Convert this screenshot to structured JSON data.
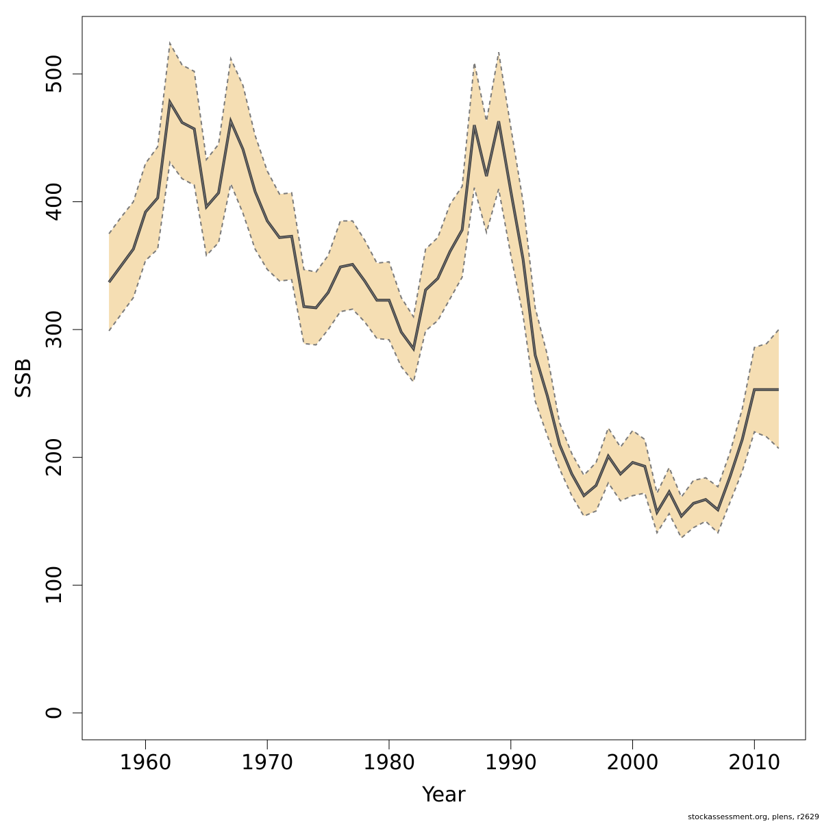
{
  "chart_data": {
    "type": "line",
    "xlabel": "Year",
    "ylabel": "SSB",
    "xlim": [
      1954.8,
      2014.2
    ],
    "ylim": [
      -21,
      545
    ],
    "x_ticks": [
      1960,
      1970,
      1980,
      1990,
      2000,
      2010
    ],
    "y_ticks": [
      0,
      100,
      200,
      300,
      400,
      500
    ],
    "x": [
      1957,
      1958,
      1959,
      1960,
      1961,
      1962,
      1963,
      1964,
      1965,
      1966,
      1967,
      1968,
      1969,
      1970,
      1971,
      1972,
      1973,
      1974,
      1975,
      1976,
      1977,
      1978,
      1979,
      1980,
      1981,
      1982,
      1983,
      1984,
      1985,
      1986,
      1987,
      1988,
      1989,
      1990,
      1991,
      1992,
      1993,
      1994,
      1995,
      1996,
      1997,
      1998,
      1999,
      2000,
      2001,
      2002,
      2003,
      2004,
      2005,
      2006,
      2007,
      2008,
      2009,
      2010,
      2011,
      2012
    ],
    "series": [
      {
        "role": "estimate",
        "values": [
          337,
          350,
          363,
          392,
          403,
          478,
          462,
          457,
          396,
          407,
          463,
          441,
          408,
          385,
          372,
          373,
          318,
          317,
          329,
          349,
          351,
          338,
          323,
          323,
          298,
          285,
          331,
          340,
          361,
          378,
          460,
          420,
          463,
          408,
          355,
          280,
          248,
          210,
          187,
          170,
          178,
          201,
          187,
          196,
          193,
          157,
          173,
          154,
          164,
          167,
          159,
          185,
          214,
          253,
          253,
          253
        ]
      },
      {
        "role": "upper",
        "values": [
          375,
          388,
          400,
          430,
          443,
          524,
          507,
          502,
          433,
          445,
          512,
          491,
          452,
          424,
          406,
          407,
          347,
          345,
          358,
          385,
          385,
          370,
          352,
          353,
          325,
          310,
          363,
          372,
          398,
          412,
          509,
          463,
          517,
          458,
          400,
          317,
          280,
          227,
          203,
          186,
          196,
          223,
          208,
          221,
          214,
          172,
          192,
          169,
          182,
          184,
          177,
          204,
          238,
          286,
          289,
          300
        ]
      },
      {
        "role": "lower",
        "values": [
          299,
          312,
          325,
          354,
          363,
          431,
          418,
          413,
          358,
          368,
          414,
          391,
          363,
          347,
          338,
          339,
          289,
          288,
          300,
          314,
          316,
          306,
          293,
          292,
          271,
          259,
          299,
          307,
          324,
          341,
          411,
          376,
          410,
          358,
          311,
          244,
          217,
          191,
          170,
          154,
          158,
          180,
          166,
          170,
          172,
          141,
          156,
          137,
          145,
          150,
          141,
          165,
          189,
          220,
          216,
          207
        ]
      }
    ],
    "band_fill": "#F5DEB3",
    "line_color": "#404040",
    "band_edge_color": "#7A7A7A",
    "grid": false,
    "legend": "none",
    "credit_text": "stockassessment.org, plens, r2629"
  }
}
